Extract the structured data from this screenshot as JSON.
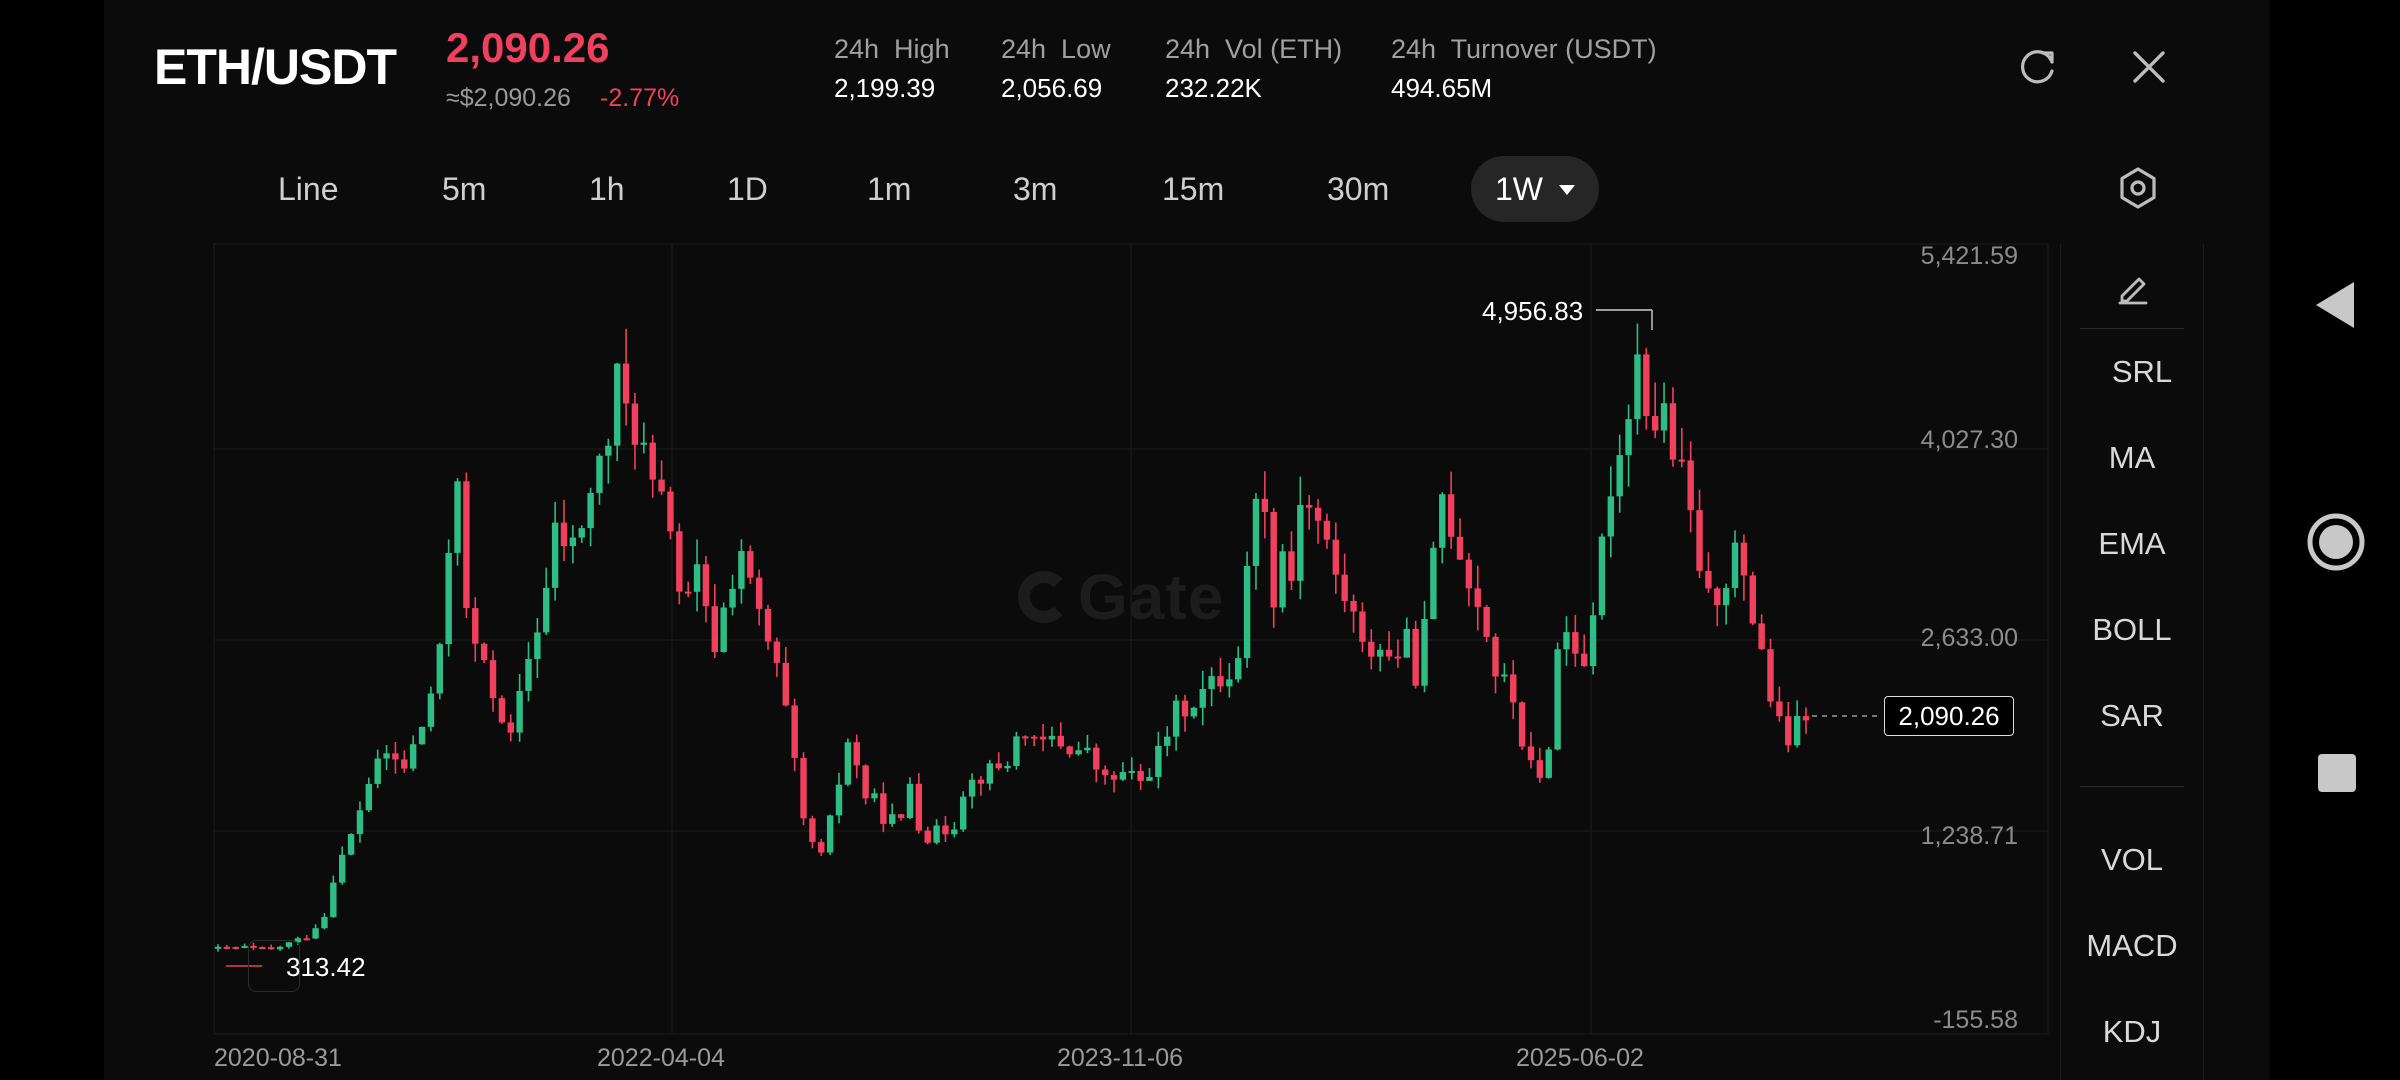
{
  "header": {
    "pair": "ETH/USDT",
    "price": "2,090.26",
    "price_usd": "≈$2,090.26",
    "change": "-2.77%",
    "stats": [
      {
        "label": "24h  High",
        "value": "2,199.39"
      },
      {
        "label": "24h  Low",
        "value": "2,056.69"
      },
      {
        "label": "24h  Vol (ETH)",
        "value": "232.22K"
      },
      {
        "label": "24h  Turnover (USDT)",
        "value": "494.65M"
      }
    ],
    "icons": {
      "refresh": "refresh-icon",
      "close": "close-icon",
      "settings": "settings-hex-icon",
      "pencil": "pencil-icon"
    }
  },
  "timeframes": {
    "items": [
      "Line",
      "5m",
      "1h",
      "1D",
      "1m",
      "3m",
      "15m",
      "30m"
    ],
    "active": "1W"
  },
  "indicators": {
    "overlay": [
      "SRL",
      "MA",
      "EMA",
      "BOLL",
      "SAR"
    ],
    "sub": [
      "VOL",
      "MACD",
      "KDJ"
    ]
  },
  "watermark": "Gate",
  "chart_data": {
    "type": "candlestick",
    "y_ticks": [
      "5,421.59",
      "4,027.30",
      "2,633.00",
      "1,238.71",
      "-155.58"
    ],
    "ylim": [
      -155.58,
      5421.59
    ],
    "x_ticks": [
      "2020-08-31",
      "2022-04-04",
      "2023-11-06",
      "2025-06-02"
    ],
    "high_marker": "4,956.83",
    "low_marker": "313.42",
    "current_price": "2,090.26",
    "up_color": "#2ebd85",
    "down_color": "#f0405e",
    "approx_close_path": [
      [
        0,
        380
      ],
      [
        3,
        390
      ],
      [
        6,
        370
      ],
      [
        8,
        420
      ],
      [
        10,
        470
      ],
      [
        12,
        620
      ],
      [
        13,
        900
      ],
      [
        15,
        1200
      ],
      [
        17,
        1600
      ],
      [
        19,
        1800
      ],
      [
        21,
        1700
      ],
      [
        23,
        2000
      ],
      [
        25,
        2500
      ],
      [
        26,
        3300
      ],
      [
        27,
        3900
      ],
      [
        28,
        2800
      ],
      [
        30,
        2400
      ],
      [
        32,
        2100
      ],
      [
        33,
        1900
      ],
      [
        35,
        2500
      ],
      [
        37,
        3000
      ],
      [
        38,
        3400
      ],
      [
        40,
        3300
      ],
      [
        42,
        3700
      ],
      [
        44,
        4100
      ],
      [
        45,
        4500
      ],
      [
        46,
        4300
      ],
      [
        47,
        4200
      ],
      [
        48,
        4000
      ],
      [
        49,
        3700
      ],
      [
        51,
        3500
      ],
      [
        52,
        3000
      ],
      [
        53,
        2900
      ],
      [
        54,
        3100
      ],
      [
        55,
        2800
      ],
      [
        56,
        2600
      ],
      [
        58,
        3100
      ],
      [
        59,
        3300
      ],
      [
        60,
        3000
      ],
      [
        61,
        2800
      ],
      [
        63,
        2400
      ],
      [
        64,
        2100
      ],
      [
        65,
        1700
      ],
      [
        66,
        1300
      ],
      [
        67,
        1150
      ],
      [
        68,
        1050
      ],
      [
        69,
        1300
      ],
      [
        70,
        1600
      ],
      [
        71,
        1900
      ],
      [
        72,
        1700
      ],
      [
        73,
        1500
      ],
      [
        74,
        1450
      ],
      [
        75,
        1350
      ],
      [
        77,
        1300
      ],
      [
        78,
        1600
      ],
      [
        79,
        1300
      ],
      [
        80,
        1200
      ],
      [
        82,
        1250
      ],
      [
        83,
        1300
      ],
      [
        84,
        1550
      ],
      [
        86,
        1650
      ],
      [
        88,
        1700
      ],
      [
        89,
        1750
      ],
      [
        90,
        1900
      ],
      [
        91,
        2000
      ],
      [
        92,
        1850
      ],
      [
        94,
        1900
      ],
      [
        96,
        1850
      ],
      [
        98,
        1800
      ],
      [
        100,
        1600
      ],
      [
        102,
        1650
      ],
      [
        104,
        1600
      ],
      [
        106,
        1800
      ],
      [
        108,
        2100
      ],
      [
        110,
        2200
      ],
      [
        112,
        2300
      ],
      [
        114,
        2400
      ],
      [
        115,
        2550
      ],
      [
        116,
        3100
      ],
      [
        117,
        3800
      ],
      [
        118,
        3500
      ],
      [
        119,
        3000
      ],
      [
        120,
        3300
      ],
      [
        121,
        3100
      ],
      [
        122,
        3700
      ],
      [
        124,
        3500
      ],
      [
        126,
        3100
      ],
      [
        128,
        2800
      ],
      [
        129,
        2550
      ],
      [
        131,
        2600
      ],
      [
        132,
        2500
      ],
      [
        134,
        2600
      ],
      [
        135,
        2400
      ],
      [
        136,
        2700
      ],
      [
        137,
        3200
      ],
      [
        138,
        3700
      ],
      [
        139,
        3500
      ],
      [
        140,
        3300
      ],
      [
        141,
        3100
      ],
      [
        142,
        2900
      ],
      [
        143,
        2700
      ],
      [
        144,
        2400
      ],
      [
        145,
        2300
      ],
      [
        146,
        2200
      ],
      [
        147,
        1900
      ],
      [
        148,
        1700
      ],
      [
        149,
        1600
      ],
      [
        150,
        1900
      ],
      [
        151,
        2550
      ],
      [
        152,
        2700
      ],
      [
        153,
        2600
      ],
      [
        154,
        2500
      ],
      [
        155,
        2700
      ],
      [
        156,
        3300
      ],
      [
        157,
        3800
      ],
      [
        158,
        4000
      ],
      [
        159,
        4400
      ],
      [
        160,
        4700
      ],
      [
        161,
        4400
      ],
      [
        162,
        4200
      ],
      [
        163,
        4300
      ],
      [
        164,
        4000
      ],
      [
        165,
        3800
      ],
      [
        166,
        3500
      ],
      [
        167,
        3200
      ],
      [
        168,
        2900
      ],
      [
        169,
        3000
      ],
      [
        170,
        3100
      ],
      [
        171,
        3300
      ],
      [
        172,
        3000
      ],
      [
        173,
        2800
      ],
      [
        174,
        2600
      ],
      [
        175,
        2200
      ],
      [
        176,
        2000
      ],
      [
        177,
        1900
      ],
      [
        178,
        2000
      ],
      [
        179,
        2090
      ]
    ]
  }
}
